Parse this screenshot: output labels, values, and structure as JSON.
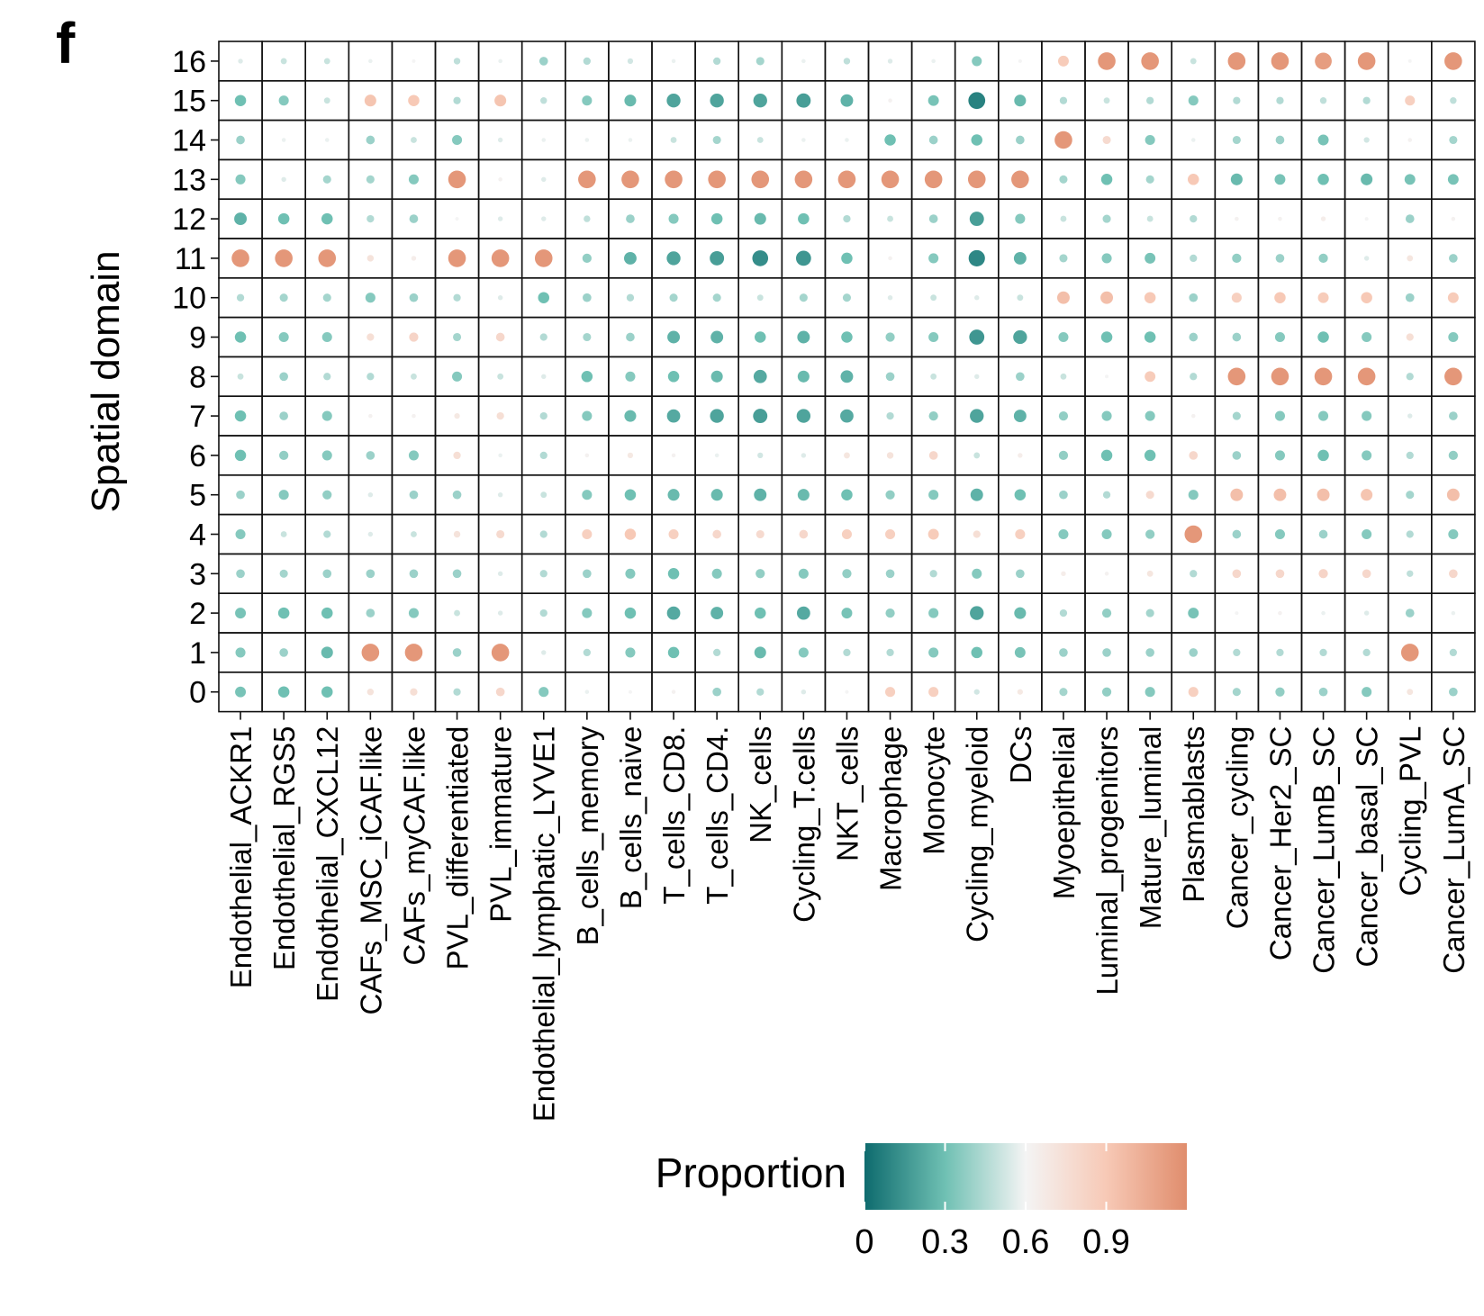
{
  "panel_label": "f",
  "chart_data": {
    "type": "heatmap",
    "subtype": "dot-matrix",
    "title": "",
    "xlabel": "",
    "ylabel": "Spatial domain",
    "x_categories": [
      "Endothelial_ACKR1",
      "Endothelial_RGS5",
      "Endothelial_CXCL12",
      "CAFs_MSC_iCAF.like",
      "CAFs_myCAF.like",
      "PVL_differentiated",
      "PVL_immature",
      "Endothelial_lymphatic_LYVE1",
      "B_cells_memory",
      "B_cells_naive",
      "T_cells_CD8.",
      "T_cells_CD4.",
      "NK_cells",
      "Cycling_T.cells",
      "NKT_cells",
      "Macrophage",
      "Monocyte",
      "Cycling_myeloid",
      "DCs",
      "Myoepithelial",
      "Luminal_progenitors",
      "Mature_luminal",
      "Plasmablasts",
      "Cancer_cycling",
      "Cancer_Her2_SC",
      "Cancer_LumB_SC",
      "Cancer_basal_SC",
      "Cycling_PVL",
      "Cancer_LumA_SC"
    ],
    "y_categories": [
      "16",
      "15",
      "14",
      "13",
      "12",
      "11",
      "10",
      "9",
      "8",
      "7",
      "6",
      "5",
      "4",
      "3",
      "2",
      "1",
      "0"
    ],
    "values": [
      [
        0.55,
        0.5,
        0.5,
        0.58,
        0.6,
        0.48,
        0.58,
        0.4,
        0.45,
        0.52,
        0.58,
        0.45,
        0.42,
        0.58,
        0.48,
        0.55,
        0.58,
        0.35,
        0.6,
        0.88,
        1.15,
        1.15,
        0.5,
        1.15,
        1.15,
        1.12,
        1.15,
        0.6,
        1.15
      ],
      [
        0.3,
        0.35,
        0.5,
        0.92,
        0.9,
        0.45,
        0.92,
        0.48,
        0.35,
        0.28,
        0.2,
        0.2,
        0.2,
        0.18,
        0.25,
        0.62,
        0.32,
        0.08,
        0.28,
        0.45,
        0.5,
        0.45,
        0.35,
        0.45,
        0.45,
        0.48,
        0.45,
        0.85,
        0.48
      ],
      [
        0.4,
        0.58,
        0.58,
        0.4,
        0.5,
        0.35,
        0.55,
        0.58,
        0.58,
        0.58,
        0.5,
        0.42,
        0.5,
        0.58,
        0.58,
        0.3,
        0.4,
        0.3,
        0.4,
        1.15,
        0.78,
        0.35,
        0.58,
        0.42,
        0.4,
        0.32,
        0.52,
        0.62,
        0.42
      ],
      [
        0.35,
        0.55,
        0.42,
        0.42,
        0.35,
        1.15,
        0.62,
        0.55,
        1.15,
        1.15,
        1.15,
        1.15,
        1.15,
        1.15,
        1.15,
        1.15,
        1.15,
        1.15,
        1.15,
        0.42,
        0.3,
        0.42,
        0.9,
        0.28,
        0.32,
        0.3,
        0.28,
        0.32,
        0.32
      ],
      [
        0.25,
        0.3,
        0.3,
        0.45,
        0.4,
        0.6,
        0.55,
        0.55,
        0.48,
        0.4,
        0.35,
        0.3,
        0.28,
        0.3,
        0.45,
        0.5,
        0.4,
        0.18,
        0.35,
        0.5,
        0.42,
        0.5,
        0.45,
        0.62,
        0.62,
        0.65,
        0.6,
        0.4,
        0.62
      ],
      [
        1.15,
        1.15,
        1.15,
        0.72,
        0.65,
        1.15,
        1.15,
        1.15,
        0.38,
        0.25,
        0.2,
        0.18,
        0.12,
        0.15,
        0.3,
        0.62,
        0.35,
        0.1,
        0.25,
        0.42,
        0.35,
        0.32,
        0.45,
        0.38,
        0.4,
        0.38,
        0.55,
        0.7,
        0.4
      ],
      [
        0.45,
        0.42,
        0.42,
        0.35,
        0.4,
        0.45,
        0.55,
        0.3,
        0.4,
        0.45,
        0.42,
        0.42,
        0.5,
        0.42,
        0.42,
        0.55,
        0.5,
        0.55,
        0.5,
        0.95,
        0.95,
        0.9,
        0.4,
        0.85,
        0.9,
        0.88,
        0.9,
        0.4,
        0.88
      ],
      [
        0.3,
        0.35,
        0.35,
        0.75,
        0.82,
        0.42,
        0.8,
        0.45,
        0.42,
        0.4,
        0.25,
        0.25,
        0.3,
        0.25,
        0.3,
        0.38,
        0.35,
        0.15,
        0.2,
        0.35,
        0.3,
        0.3,
        0.4,
        0.4,
        0.35,
        0.3,
        0.35,
        0.75,
        0.35
      ],
      [
        0.5,
        0.4,
        0.45,
        0.45,
        0.5,
        0.35,
        0.5,
        0.55,
        0.3,
        0.35,
        0.3,
        0.28,
        0.22,
        0.28,
        0.25,
        0.4,
        0.5,
        0.55,
        0.4,
        0.5,
        0.6,
        0.88,
        0.45,
        1.15,
        1.15,
        1.15,
        1.15,
        0.45,
        1.15
      ],
      [
        0.3,
        0.4,
        0.35,
        0.62,
        0.62,
        0.68,
        0.75,
        0.45,
        0.35,
        0.28,
        0.22,
        0.2,
        0.18,
        0.2,
        0.22,
        0.45,
        0.38,
        0.2,
        0.25,
        0.38,
        0.35,
        0.35,
        0.62,
        0.42,
        0.35,
        0.35,
        0.35,
        0.55,
        0.4
      ],
      [
        0.3,
        0.38,
        0.35,
        0.4,
        0.35,
        0.75,
        0.58,
        0.45,
        0.62,
        0.68,
        0.62,
        0.58,
        0.52,
        0.55,
        0.7,
        0.72,
        0.8,
        0.5,
        0.65,
        0.38,
        0.3,
        0.3,
        0.8,
        0.4,
        0.35,
        0.3,
        0.35,
        0.45,
        0.38
      ],
      [
        0.4,
        0.35,
        0.38,
        0.55,
        0.4,
        0.4,
        0.55,
        0.5,
        0.35,
        0.3,
        0.28,
        0.28,
        0.25,
        0.28,
        0.3,
        0.38,
        0.35,
        0.25,
        0.3,
        0.4,
        0.45,
        0.78,
        0.35,
        0.95,
        0.95,
        0.95,
        0.92,
        0.42,
        0.95
      ],
      [
        0.35,
        0.5,
        0.45,
        0.55,
        0.5,
        0.72,
        0.78,
        0.45,
        0.85,
        0.9,
        0.85,
        0.8,
        0.78,
        0.8,
        0.85,
        0.85,
        0.88,
        0.75,
        0.85,
        0.35,
        0.35,
        0.38,
        1.15,
        0.4,
        0.35,
        0.4,
        0.35,
        0.45,
        0.35
      ],
      [
        0.4,
        0.42,
        0.4,
        0.4,
        0.4,
        0.4,
        0.55,
        0.45,
        0.4,
        0.35,
        0.3,
        0.35,
        0.38,
        0.35,
        0.38,
        0.4,
        0.45,
        0.35,
        0.4,
        0.65,
        0.62,
        0.7,
        0.45,
        0.8,
        0.8,
        0.82,
        0.8,
        0.48,
        0.8
      ],
      [
        0.32,
        0.3,
        0.3,
        0.4,
        0.35,
        0.5,
        0.55,
        0.45,
        0.35,
        0.3,
        0.22,
        0.25,
        0.3,
        0.22,
        0.32,
        0.38,
        0.35,
        0.2,
        0.28,
        0.45,
        0.38,
        0.42,
        0.32,
        0.6,
        0.62,
        0.58,
        0.55,
        0.4,
        0.58
      ],
      [
        0.35,
        0.4,
        0.28,
        1.15,
        1.15,
        0.4,
        1.15,
        0.55,
        0.45,
        0.35,
        0.3,
        0.45,
        0.28,
        0.35,
        0.45,
        0.45,
        0.35,
        0.3,
        0.32,
        0.4,
        0.4,
        0.4,
        0.4,
        0.45,
        0.45,
        0.45,
        0.45,
        1.15,
        0.45
      ],
      [
        0.32,
        0.3,
        0.3,
        0.72,
        0.75,
        0.45,
        0.8,
        0.35,
        0.58,
        0.6,
        0.62,
        0.4,
        0.45,
        0.55,
        0.6,
        0.85,
        0.85,
        0.52,
        0.68,
        0.42,
        0.38,
        0.35,
        0.85,
        0.42,
        0.38,
        0.4,
        0.35,
        0.7,
        0.4
      ]
    ],
    "colorbar": {
      "label": "Proportion",
      "ticks": [
        "0",
        "0.3",
        "0.6",
        "0.9"
      ],
      "range": [
        0,
        1.2
      ],
      "colors": {
        "low": "#0e6b6e",
        "low_mid": "#6fc0b3",
        "mid": "#f4f4f4",
        "high_mid": "#f7c9b6",
        "high": "#e08d6d"
      }
    },
    "legend_position": "bottom"
  }
}
